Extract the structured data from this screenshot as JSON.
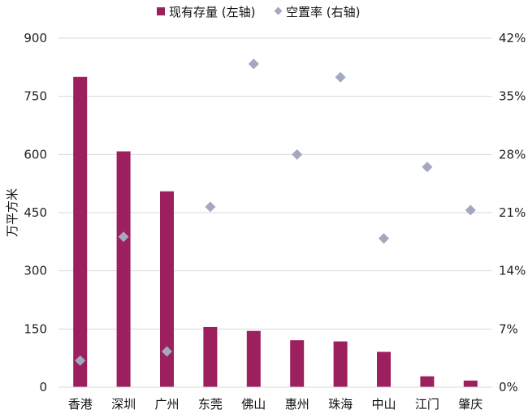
{
  "chart_data": {
    "type": "bar",
    "categories": [
      "香港",
      "深圳",
      "广州",
      "东莞",
      "佛山",
      "惠州",
      "珠海",
      "中山",
      "江门",
      "肇庆"
    ],
    "series": [
      {
        "name": "现有存量 (左轴)",
        "type": "bar",
        "axis": "left",
        "color": "#9C1F5E",
        "values": [
          800,
          608,
          505,
          155,
          145,
          121,
          118,
          91,
          28,
          17
        ]
      },
      {
        "name": "空置率 (右轴)",
        "type": "scatter",
        "marker": "diamond",
        "axis": "right",
        "color": "#A3A7BF",
        "values": [
          3.2,
          18.1,
          4.3,
          21.7,
          38.9,
          28.0,
          37.3,
          17.9,
          26.5,
          21.3
        ]
      }
    ],
    "ylabel": "万平方米",
    "yleft": {
      "min": 0,
      "max": 900,
      "ticks": [
        "0",
        "150",
        "300",
        "450",
        "600",
        "750",
        "900"
      ]
    },
    "yright": {
      "min": 0,
      "max": 42,
      "unit": "%",
      "ticks": [
        "0%",
        "7%",
        "14%",
        "21%",
        "28%",
        "35%",
        "42%"
      ]
    },
    "grid": true,
    "legend_position": "top"
  }
}
